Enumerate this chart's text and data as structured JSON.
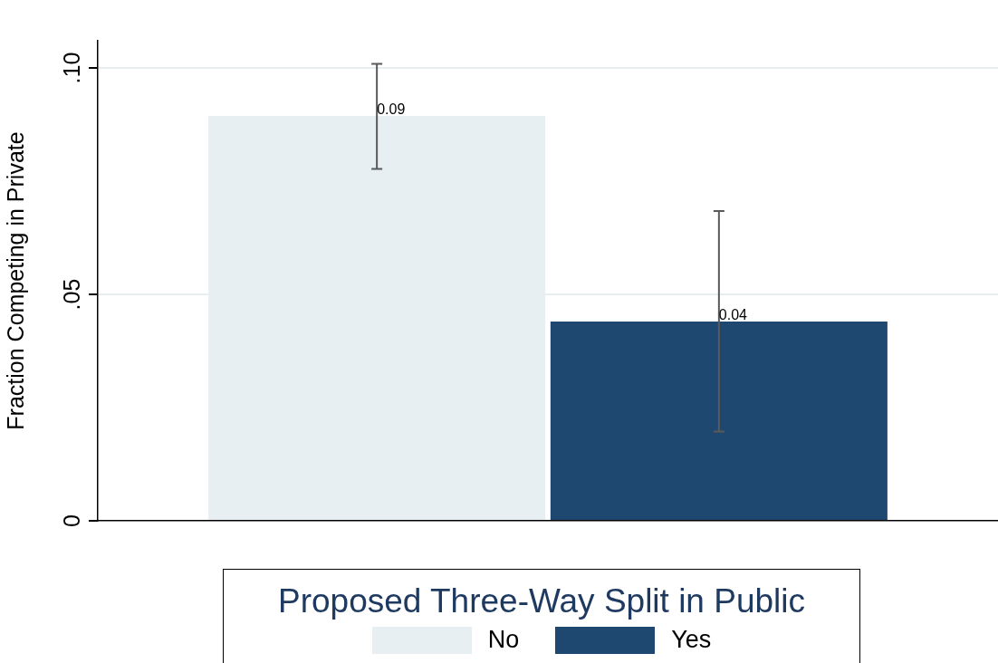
{
  "chart_data": {
    "type": "bar",
    "ylabel": "Fraction Competing in Private",
    "legend_title": "Proposed Three-Way Split in Public",
    "categories": [
      null
    ],
    "series": [
      {
        "name": "No",
        "color": "#e8eff2",
        "values": [
          0.0894
        ],
        "errors": [
          [
            0.0777,
            0.1009
          ]
        ],
        "value_labels": [
          "0.09"
        ]
      },
      {
        "name": "Yes",
        "color": "#1f4870",
        "values": [
          0.044
        ],
        "errors": [
          [
            0.0197,
            0.0684
          ]
        ],
        "value_labels": [
          "0.04"
        ]
      }
    ],
    "ylim": [
      0,
      0.106
    ],
    "yticks": [
      {
        "value": 0,
        "label": "0"
      },
      {
        "value": 0.05,
        "label": ".05"
      },
      {
        "value": 0.1,
        "label": ".10"
      }
    ],
    "grid": "y",
    "legend": "bottom"
  }
}
